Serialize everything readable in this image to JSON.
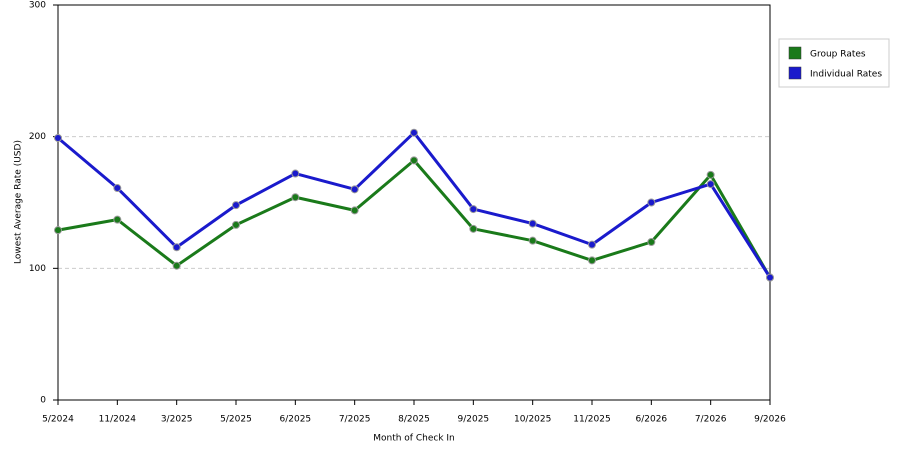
{
  "chart_data": {
    "type": "line",
    "x_label": "Month of Check In",
    "y_label": "Lowest Average Rate (USD)",
    "categories": [
      "5/2024",
      "11/2024",
      "3/2025",
      "5/2025",
      "6/2025",
      "7/2025",
      "8/2025",
      "9/2025",
      "10/2025",
      "11/2025",
      "6/2026",
      "7/2026",
      "9/2026"
    ],
    "series": [
      {
        "name": "Group Rates",
        "color": "#1a7a1a",
        "values": [
          129,
          137,
          102,
          133,
          154,
          144,
          182,
          130,
          121,
          106,
          120,
          171,
          93
        ]
      },
      {
        "name": "Individual Rates",
        "color": "#1a1acc",
        "values": [
          199,
          161,
          116,
          148,
          172,
          160,
          203,
          145,
          134,
          118,
          150,
          164,
          93
        ]
      }
    ],
    "ylim": [
      0,
      300
    ],
    "yticks": [
      0,
      100,
      200,
      300
    ],
    "grid": true,
    "legend": "right"
  }
}
